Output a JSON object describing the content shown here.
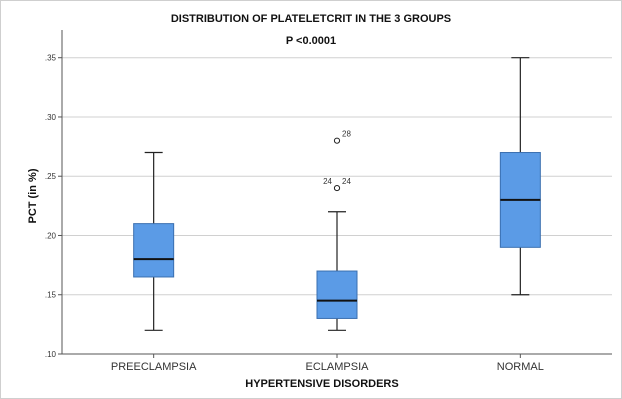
{
  "chart_data": {
    "type": "boxplot",
    "title": "DISTRIBUTION OF PLATELETCRIT IN THE 3 GROUPS",
    "subtitle": "P <0.0001",
    "xlabel": "HYPERTENSIVE DISORDERS",
    "ylabel": "PCT (in %)",
    "ylim": [
      0.1,
      0.37
    ],
    "yticks": [
      ".10",
      ".15",
      ".20",
      ".25",
      ".30",
      ".35"
    ],
    "ytick_values": [
      0.1,
      0.15,
      0.2,
      0.25,
      0.3,
      0.35
    ],
    "grid": true,
    "box_color": "#5B9BE6",
    "categories": [
      "PREECLAMPSIA",
      "ECLAMPSIA",
      "NORMAL"
    ],
    "boxes": [
      {
        "category": "PREECLAMPSIA",
        "whisker_low": 0.12,
        "q1": 0.165,
        "median": 0.18,
        "q3": 0.21,
        "whisker_high": 0.27,
        "outliers": []
      },
      {
        "category": "ECLAMPSIA",
        "whisker_low": 0.12,
        "q1": 0.13,
        "median": 0.145,
        "q3": 0.17,
        "whisker_high": 0.22,
        "outliers": [
          {
            "value": 0.28,
            "labels": [
              "28"
            ]
          },
          {
            "value": 0.24,
            "labels": [
              "24",
              "24"
            ]
          }
        ]
      },
      {
        "category": "NORMAL",
        "whisker_low": 0.15,
        "q1": 0.19,
        "median": 0.23,
        "q3": 0.27,
        "whisker_high": 0.35,
        "outliers": []
      }
    ]
  }
}
